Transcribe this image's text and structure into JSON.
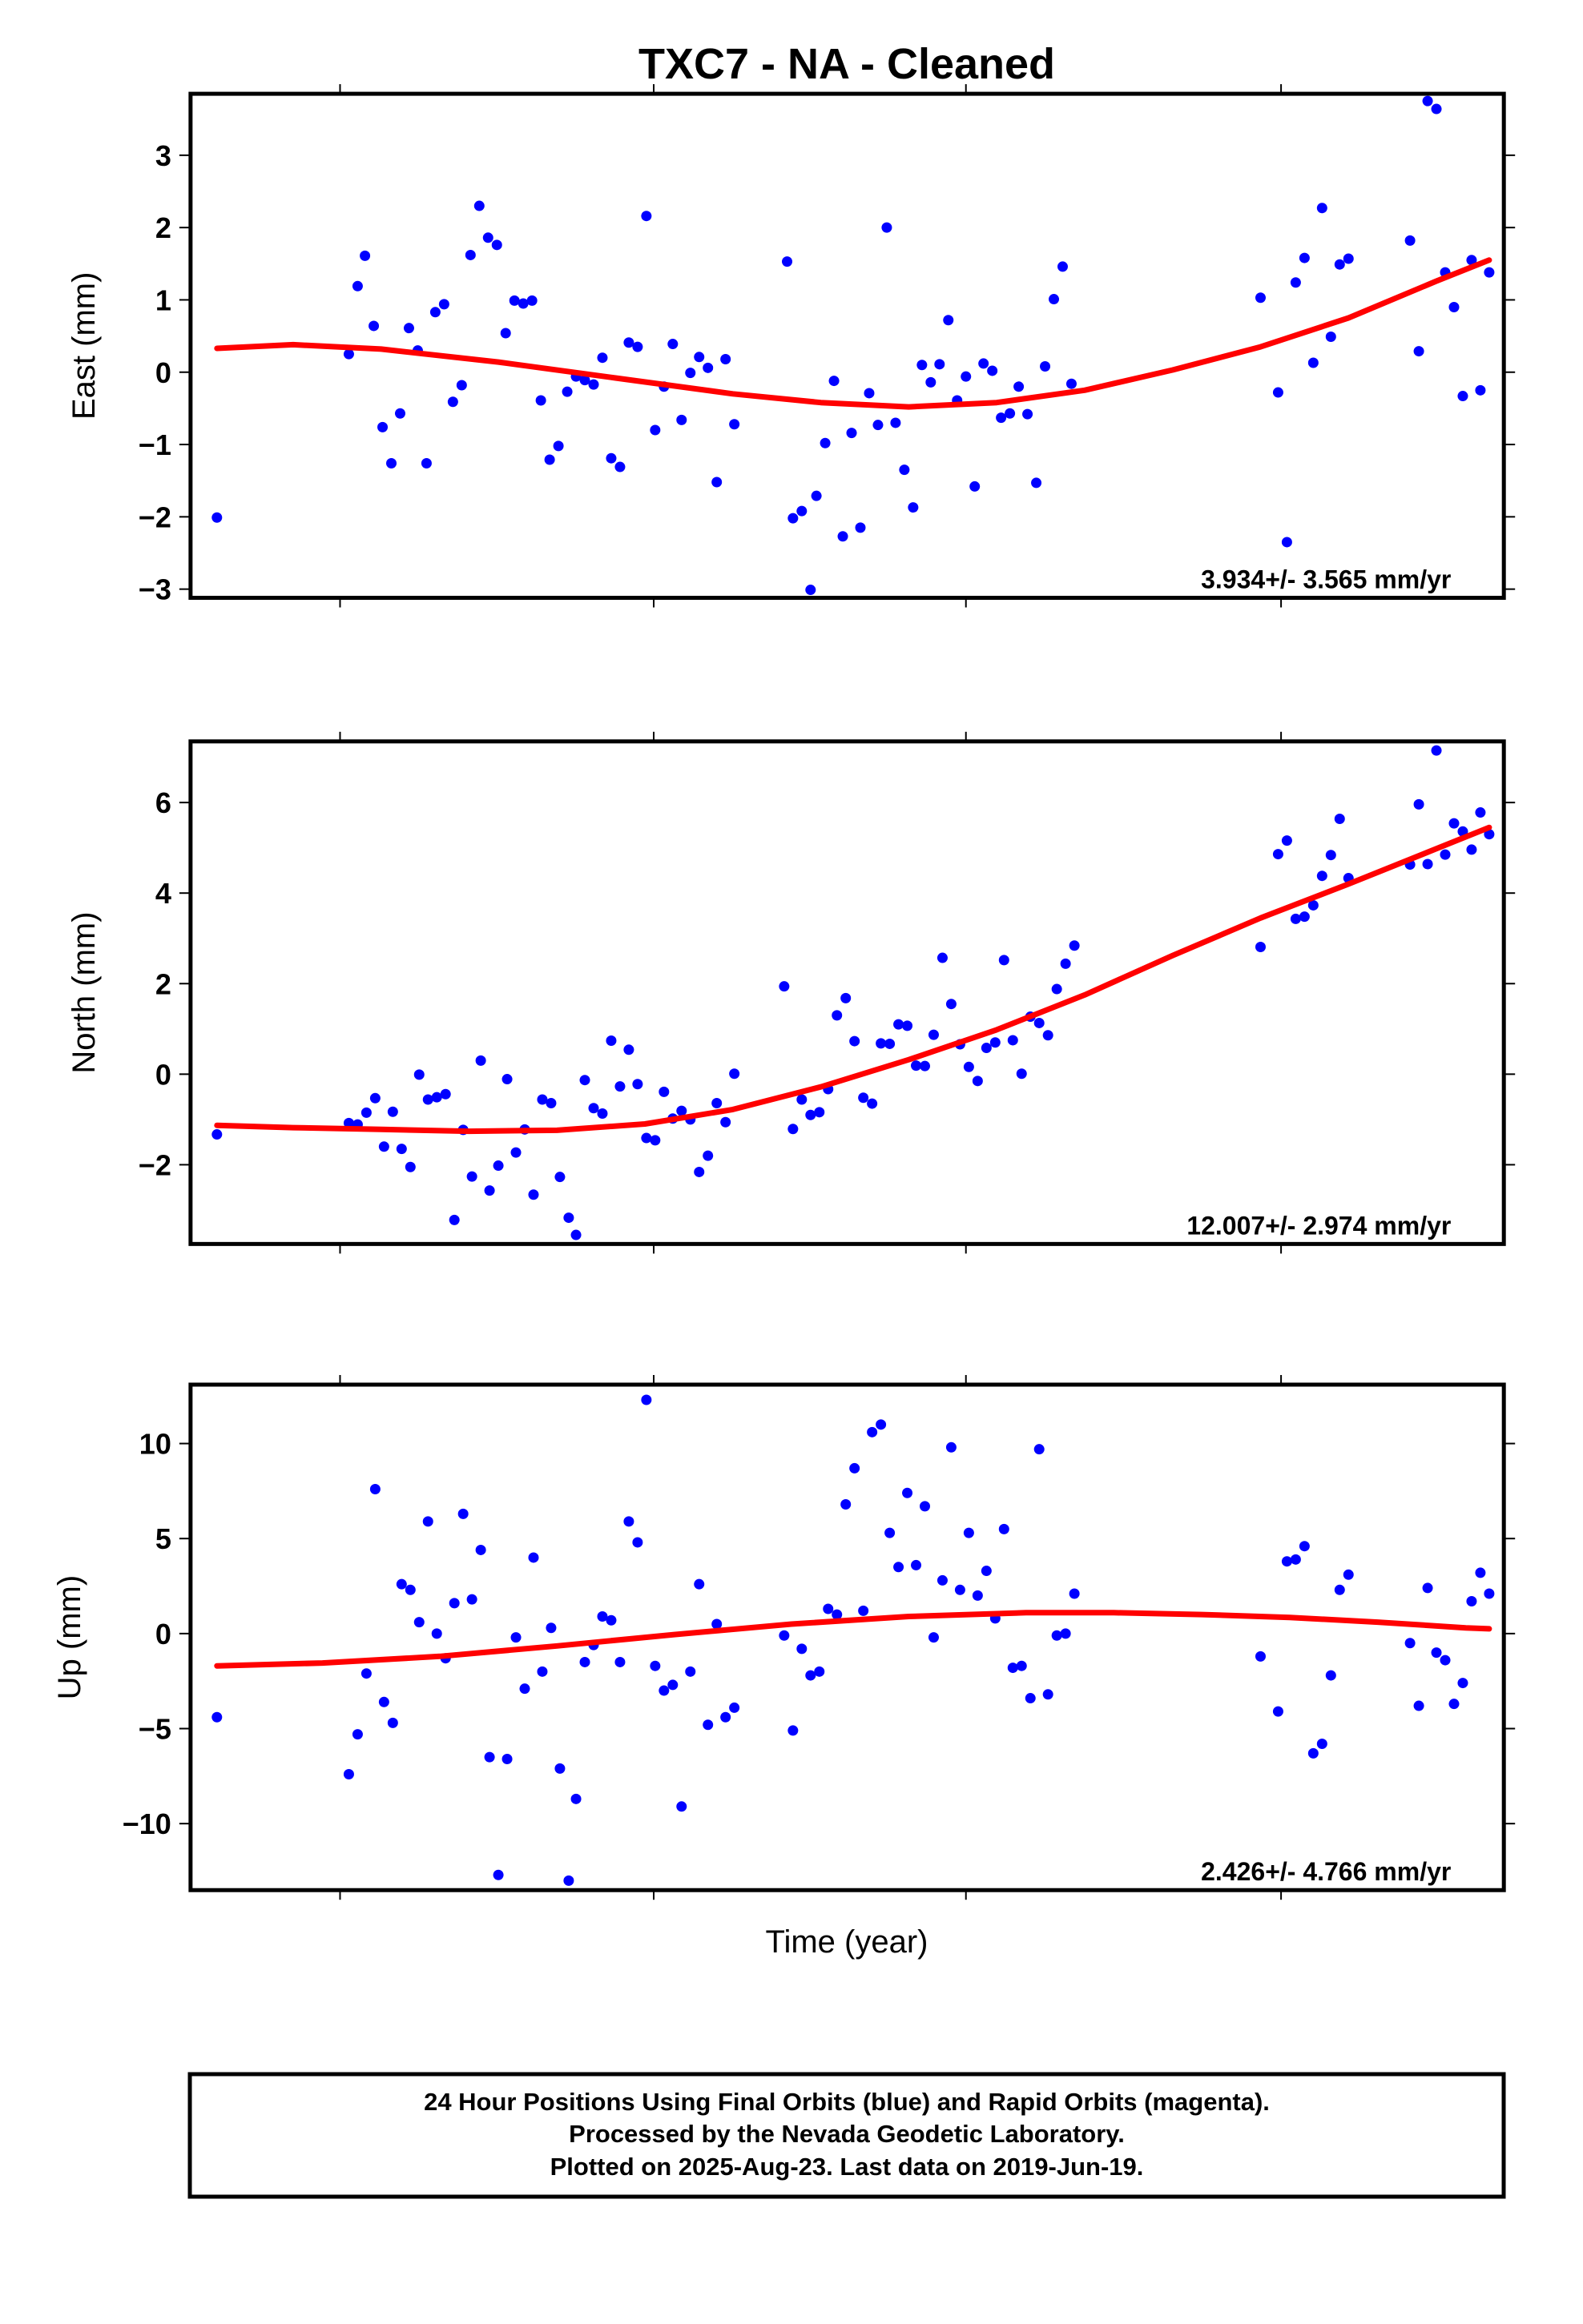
{
  "colors": {
    "points": "#0000ff",
    "fit": "#ff0000",
    "frame": "#000000"
  },
  "chart_data": [
    {
      "type": "scatter",
      "title": "TXC7  - NA - Cleaned",
      "ylabel": "East (mm)",
      "ylim": [
        -3.12,
        3.85
      ],
      "yticks": [
        3,
        2,
        1,
        0,
        -1,
        -2,
        -3
      ],
      "ytick_labels": [
        "3",
        "2",
        "1",
        "0",
        "−1",
        "−2",
        "−3"
      ],
      "rate_label": "3.934+/- 3.565 mm/yr",
      "grid": false,
      "points": [
        [
          148,
          -2.01
        ],
        [
          238,
          0.25
        ],
        [
          244,
          1.19
        ],
        [
          249,
          1.61
        ],
        [
          255,
          0.64
        ],
        [
          261,
          -0.76
        ],
        [
          267,
          -1.26
        ],
        [
          273,
          -0.57
        ],
        [
          279,
          0.61
        ],
        [
          285,
          0.3
        ],
        [
          291,
          -1.26
        ],
        [
          297,
          0.83
        ],
        [
          303,
          0.94
        ],
        [
          309,
          -0.41
        ],
        [
          315,
          -0.18
        ],
        [
          321,
          1.62
        ],
        [
          327,
          2.3
        ],
        [
          333,
          1.86
        ],
        [
          339,
          1.76
        ],
        [
          345,
          0.54
        ],
        [
          351,
          0.99
        ],
        [
          357,
          0.95
        ],
        [
          363,
          0.99
        ],
        [
          369,
          -0.39
        ],
        [
          375,
          -1.21
        ],
        [
          381,
          -1.02
        ],
        [
          387,
          -0.27
        ],
        [
          393,
          -0.06
        ],
        [
          399,
          -0.11
        ],
        [
          405,
          -0.17
        ],
        [
          411,
          0.2
        ],
        [
          417,
          -1.19
        ],
        [
          423,
          -1.31
        ],
        [
          429,
          0.41
        ],
        [
          435,
          0.35
        ],
        [
          441,
          2.16
        ],
        [
          447,
          -0.8
        ],
        [
          453,
          -0.2
        ],
        [
          459,
          0.39
        ],
        [
          465,
          -0.66
        ],
        [
          471,
          -0.01
        ],
        [
          477,
          0.21
        ],
        [
          483,
          0.06
        ],
        [
          489,
          -1.52
        ],
        [
          495,
          0.18
        ],
        [
          501,
          -0.72
        ],
        [
          537,
          1.53
        ],
        [
          541,
          -2.02
        ],
        [
          547,
          -1.92
        ],
        [
          553,
          -3.01
        ],
        [
          557,
          -1.71
        ],
        [
          563,
          -0.98
        ],
        [
          569,
          -0.12
        ],
        [
          575,
          -2.27
        ],
        [
          581,
          -0.84
        ],
        [
          587,
          -2.15
        ],
        [
          593,
          -0.29
        ],
        [
          599,
          -0.73
        ],
        [
          605,
          2.0
        ],
        [
          611,
          -0.7
        ],
        [
          617,
          -1.35
        ],
        [
          623,
          -1.87
        ],
        [
          629,
          0.1
        ],
        [
          635,
          -0.14
        ],
        [
          641,
          0.11
        ],
        [
          647,
          0.72
        ],
        [
          653,
          -0.39
        ],
        [
          659,
          -0.06
        ],
        [
          665,
          -1.58
        ],
        [
          671,
          0.12
        ],
        [
          677,
          0.02
        ],
        [
          683,
          -0.63
        ],
        [
          689,
          -0.57
        ],
        [
          695,
          -0.2
        ],
        [
          701,
          -0.58
        ],
        [
          707,
          -1.53
        ],
        [
          713,
          0.08
        ],
        [
          719,
          1.01
        ],
        [
          725,
          1.46
        ],
        [
          731,
          -0.16
        ],
        [
          860,
          1.03
        ],
        [
          872,
          -0.28
        ],
        [
          878,
          -2.35
        ],
        [
          884,
          1.24
        ],
        [
          890,
          1.58
        ],
        [
          896,
          0.13
        ],
        [
          902,
          2.27
        ],
        [
          908,
          0.49
        ],
        [
          914,
          1.49
        ],
        [
          920,
          1.57
        ],
        [
          962,
          1.82
        ],
        [
          968,
          0.29
        ],
        [
          974,
          3.75
        ],
        [
          980,
          3.64
        ],
        [
          986,
          1.38
        ],
        [
          992,
          0.9
        ],
        [
          998,
          -0.33
        ],
        [
          1004,
          1.55
        ],
        [
          1010,
          -0.25
        ],
        [
          1016,
          1.38
        ]
      ],
      "fit": [
        [
          148,
          0.33
        ],
        [
          200,
          0.38
        ],
        [
          260,
          0.32
        ],
        [
          340,
          0.14
        ],
        [
          420,
          -0.08
        ],
        [
          500,
          -0.3
        ],
        [
          560,
          -0.42
        ],
        [
          620,
          -0.48
        ],
        [
          680,
          -0.42
        ],
        [
          740,
          -0.25
        ],
        [
          800,
          0.03
        ],
        [
          860,
          0.35
        ],
        [
          920,
          0.75
        ],
        [
          980,
          1.26
        ],
        [
          1016,
          1.55
        ]
      ]
    },
    {
      "type": "scatter",
      "ylabel": "North (mm)",
      "ylim": [
        -3.75,
        7.35
      ],
      "yticks": [
        6,
        4,
        2,
        0,
        -2
      ],
      "ytick_labels": [
        "6",
        "4",
        "2",
        "0",
        "−2"
      ],
      "rate_label": "12.007+/- 2.974 mm/yr",
      "grid": false,
      "points": [
        [
          148,
          -1.33
        ],
        [
          238,
          -1.08
        ],
        [
          244,
          -1.11
        ],
        [
          250,
          -0.85
        ],
        [
          256,
          -0.53
        ],
        [
          262,
          -1.6
        ],
        [
          268,
          -0.83
        ],
        [
          274,
          -1.65
        ],
        [
          280,
          -2.05
        ],
        [
          286,
          -0.01
        ],
        [
          292,
          -0.56
        ],
        [
          298,
          -0.51
        ],
        [
          304,
          -0.44
        ],
        [
          310,
          -3.22
        ],
        [
          316,
          -1.23
        ],
        [
          322,
          -2.26
        ],
        [
          328,
          0.3
        ],
        [
          334,
          -2.57
        ],
        [
          340,
          -2.02
        ],
        [
          346,
          -0.11
        ],
        [
          352,
          -1.73
        ],
        [
          358,
          -1.22
        ],
        [
          364,
          -2.66
        ],
        [
          370,
          -0.56
        ],
        [
          376,
          -0.64
        ],
        [
          382,
          -2.27
        ],
        [
          388,
          -3.17
        ],
        [
          393,
          -3.55
        ],
        [
          399,
          -0.13
        ],
        [
          405,
          -0.75
        ],
        [
          411,
          -0.87
        ],
        [
          417,
          0.74
        ],
        [
          423,
          -0.27
        ],
        [
          429,
          0.54
        ],
        [
          435,
          -0.22
        ],
        [
          441,
          -1.41
        ],
        [
          447,
          -1.46
        ],
        [
          453,
          -0.39
        ],
        [
          459,
          -0.98
        ],
        [
          465,
          -0.81
        ],
        [
          471,
          -1.0
        ],
        [
          477,
          -2.16
        ],
        [
          483,
          -1.8
        ],
        [
          489,
          -0.64
        ],
        [
          495,
          -1.06
        ],
        [
          501,
          0.01
        ],
        [
          535,
          1.94
        ],
        [
          541,
          -1.21
        ],
        [
          547,
          -0.56
        ],
        [
          553,
          -0.9
        ],
        [
          559,
          -0.84
        ],
        [
          565,
          -0.33
        ],
        [
          571,
          1.3
        ],
        [
          577,
          1.68
        ],
        [
          583,
          0.73
        ],
        [
          589,
          -0.52
        ],
        [
          595,
          -0.65
        ],
        [
          601,
          0.68
        ],
        [
          607,
          0.67
        ],
        [
          613,
          1.1
        ],
        [
          619,
          1.07
        ],
        [
          625,
          0.19
        ],
        [
          631,
          0.18
        ],
        [
          637,
          0.87
        ],
        [
          643,
          2.57
        ],
        [
          649,
          1.55
        ],
        [
          655,
          0.66
        ],
        [
          661,
          0.16
        ],
        [
          667,
          -0.15
        ],
        [
          673,
          0.58
        ],
        [
          679,
          0.7
        ],
        [
          685,
          2.52
        ],
        [
          691,
          0.75
        ],
        [
          697,
          0.01
        ],
        [
          703,
          1.27
        ],
        [
          709,
          1.13
        ],
        [
          715,
          0.86
        ],
        [
          721,
          1.88
        ],
        [
          727,
          2.44
        ],
        [
          733,
          2.84
        ],
        [
          860,
          2.81
        ],
        [
          872,
          4.86
        ],
        [
          878,
          5.16
        ],
        [
          884,
          3.43
        ],
        [
          890,
          3.48
        ],
        [
          896,
          3.73
        ],
        [
          902,
          4.38
        ],
        [
          908,
          4.84
        ],
        [
          914,
          5.64
        ],
        [
          920,
          4.33
        ],
        [
          962,
          4.63
        ],
        [
          968,
          5.96
        ],
        [
          974,
          4.64
        ],
        [
          980,
          7.15
        ],
        [
          986,
          4.85
        ],
        [
          992,
          5.54
        ],
        [
          998,
          5.36
        ],
        [
          1004,
          4.96
        ],
        [
          1010,
          5.78
        ],
        [
          1016,
          5.3
        ]
      ],
      "fit": [
        [
          148,
          -1.13
        ],
        [
          200,
          -1.18
        ],
        [
          260,
          -1.22
        ],
        [
          320,
          -1.26
        ],
        [
          380,
          -1.24
        ],
        [
          440,
          -1.1
        ],
        [
          500,
          -0.78
        ],
        [
          560,
          -0.28
        ],
        [
          620,
          0.32
        ],
        [
          680,
          0.98
        ],
        [
          740,
          1.75
        ],
        [
          800,
          2.62
        ],
        [
          860,
          3.45
        ],
        [
          920,
          4.2
        ],
        [
          980,
          4.98
        ],
        [
          1016,
          5.45
        ]
      ]
    },
    {
      "type": "scatter",
      "xlabel": "Time (year)",
      "ylabel": "Up (mm)",
      "ylim": [
        -13.5,
        13.1
      ],
      "yticks": [
        10,
        5,
        0,
        -5,
        -10
      ],
      "ytick_labels": [
        "10",
        "5",
        "0",
        "−5",
        "−10"
      ],
      "rate_label": "2.426+/- 4.766 mm/yr",
      "grid": false,
      "points": [
        [
          148,
          -4.4
        ],
        [
          238,
          -7.4
        ],
        [
          244,
          -5.3
        ],
        [
          250,
          -2.1
        ],
        [
          256,
          7.6
        ],
        [
          262,
          -3.6
        ],
        [
          268,
          -4.7
        ],
        [
          274,
          2.6
        ],
        [
          280,
          2.3
        ],
        [
          286,
          0.6
        ],
        [
          292,
          5.9
        ],
        [
          298,
          0.0
        ],
        [
          304,
          -1.3
        ],
        [
          310,
          1.6
        ],
        [
          316,
          6.3
        ],
        [
          322,
          1.8
        ],
        [
          328,
          4.4
        ],
        [
          334,
          -6.5
        ],
        [
          340,
          -12.7
        ],
        [
          346,
          -6.6
        ],
        [
          352,
          -0.2
        ],
        [
          358,
          -2.9
        ],
        [
          364,
          4.0
        ],
        [
          370,
          -2.0
        ],
        [
          376,
          0.3
        ],
        [
          382,
          -7.1
        ],
        [
          388,
          -13.0
        ],
        [
          393,
          -8.7
        ],
        [
          399,
          -1.5
        ],
        [
          405,
          -0.6
        ],
        [
          411,
          0.9
        ],
        [
          417,
          0.7
        ],
        [
          423,
          -1.5
        ],
        [
          429,
          5.9
        ],
        [
          435,
          4.8
        ],
        [
          441,
          12.3
        ],
        [
          447,
          -1.7
        ],
        [
          453,
          -3.0
        ],
        [
          459,
          -2.7
        ],
        [
          465,
          -9.1
        ],
        [
          471,
          -2.0
        ],
        [
          477,
          2.6
        ],
        [
          483,
          -4.8
        ],
        [
          489,
          0.5
        ],
        [
          495,
          -4.4
        ],
        [
          501,
          -3.9
        ],
        [
          535,
          -0.1
        ],
        [
          541,
          -5.1
        ],
        [
          547,
          -0.8
        ],
        [
          553,
          -2.2
        ],
        [
          559,
          -2.0
        ],
        [
          565,
          1.3
        ],
        [
          571,
          1.0
        ],
        [
          577,
          6.8
        ],
        [
          583,
          8.7
        ],
        [
          589,
          1.2
        ],
        [
          595,
          10.6
        ],
        [
          601,
          11.0
        ],
        [
          607,
          5.3
        ],
        [
          613,
          3.5
        ],
        [
          619,
          7.4
        ],
        [
          625,
          3.6
        ],
        [
          631,
          6.7
        ],
        [
          637,
          -0.2
        ],
        [
          643,
          2.8
        ],
        [
          649,
          9.8
        ],
        [
          655,
          2.3
        ],
        [
          661,
          5.3
        ],
        [
          667,
          2.0
        ],
        [
          673,
          3.3
        ],
        [
          679,
          0.8
        ],
        [
          685,
          5.5
        ],
        [
          691,
          -1.8
        ],
        [
          697,
          -1.7
        ],
        [
          703,
          -3.4
        ],
        [
          709,
          9.7
        ],
        [
          715,
          -3.2
        ],
        [
          721,
          -0.1
        ],
        [
          727,
          0.0
        ],
        [
          733,
          2.1
        ],
        [
          860,
          -1.2
        ],
        [
          872,
          -4.1
        ],
        [
          878,
          3.8
        ],
        [
          884,
          3.9
        ],
        [
          890,
          4.6
        ],
        [
          896,
          -6.3
        ],
        [
          902,
          -5.8
        ],
        [
          908,
          -2.2
        ],
        [
          914,
          2.3
        ],
        [
          920,
          3.1
        ],
        [
          962,
          -0.5
        ],
        [
          968,
          -3.8
        ],
        [
          974,
          2.4
        ],
        [
          980,
          -1.0
        ],
        [
          986,
          -1.4
        ],
        [
          992,
          -3.7
        ],
        [
          998,
          -2.6
        ],
        [
          1004,
          1.7
        ],
        [
          1010,
          3.2
        ],
        [
          1016,
          2.1
        ]
      ],
      "fit": [
        [
          148,
          -1.7
        ],
        [
          220,
          -1.55
        ],
        [
          300,
          -1.2
        ],
        [
          380,
          -0.65
        ],
        [
          460,
          -0.05
        ],
        [
          540,
          0.5
        ],
        [
          620,
          0.9
        ],
        [
          700,
          1.1
        ],
        [
          760,
          1.1
        ],
        [
          820,
          1.0
        ],
        [
          880,
          0.85
        ],
        [
          940,
          0.6
        ],
        [
          1000,
          0.3
        ],
        [
          1016,
          0.25
        ]
      ]
    }
  ],
  "footer": {
    "line1": "24 Hour Positions Using Final Orbits (blue) and Rapid Orbits (magenta).",
    "line2": "Processed by the Nevada Geodetic Laboratory.",
    "line3": "Plotted on 2025-Aug-23. Last data on 2019-Jun-19."
  }
}
